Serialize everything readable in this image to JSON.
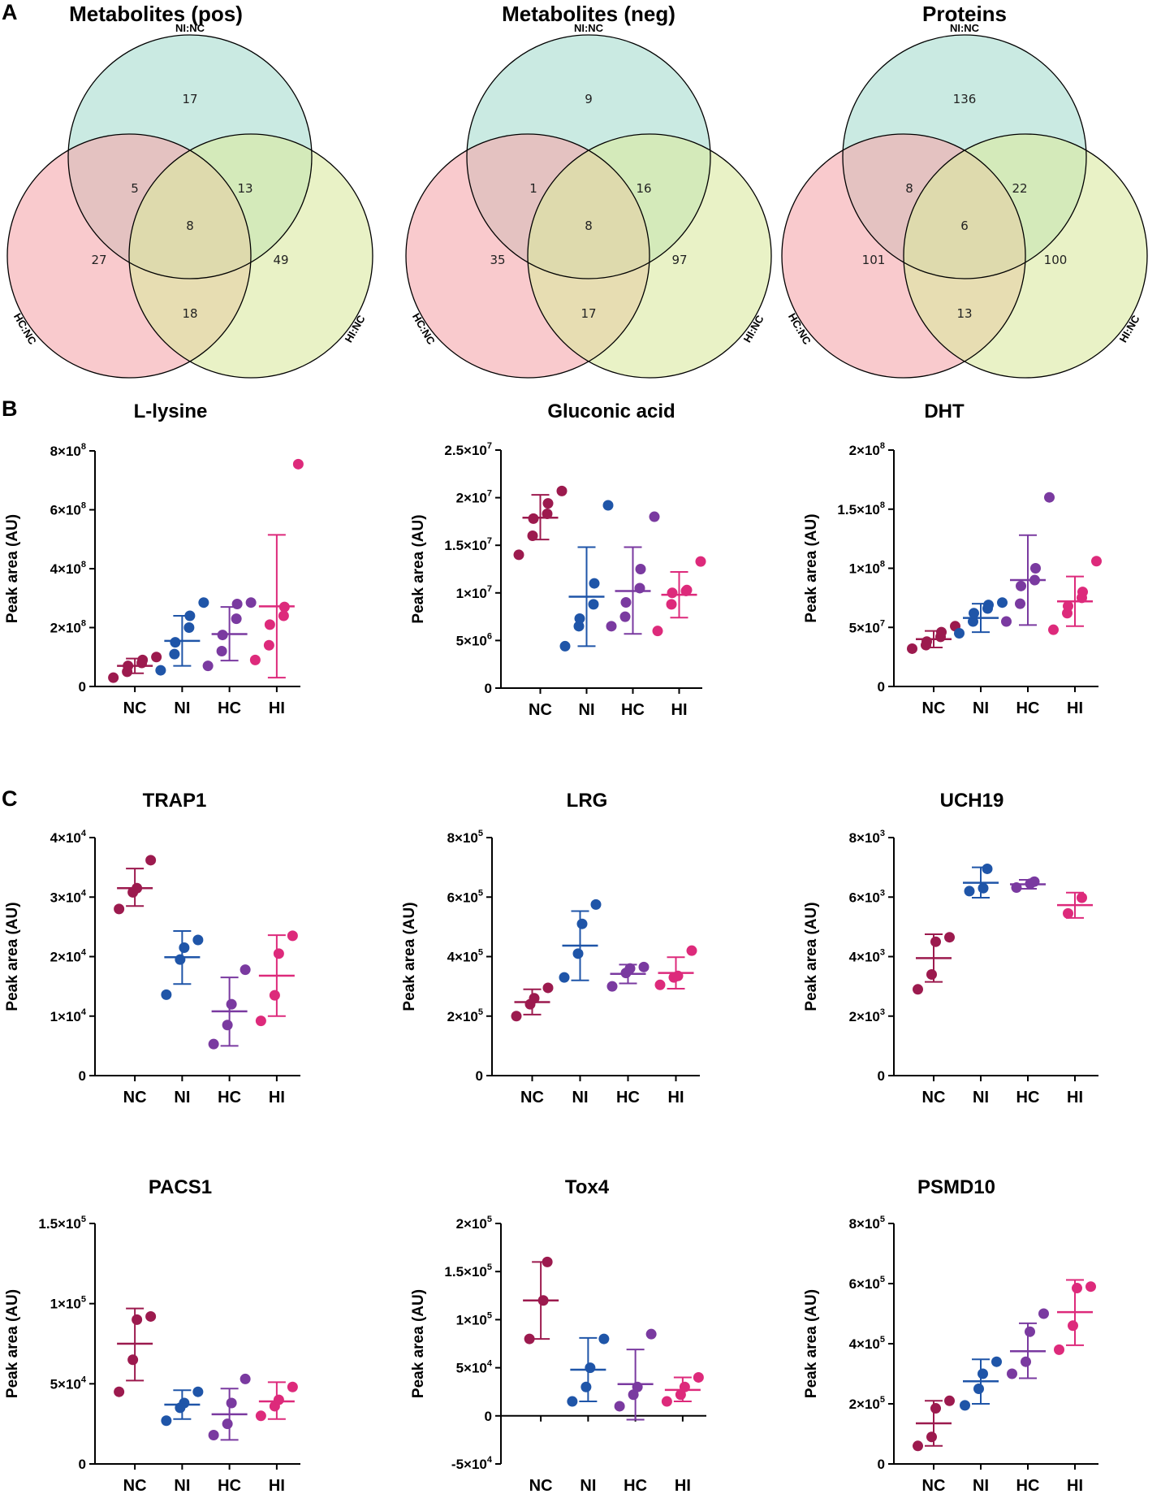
{
  "panel_labels": [
    "A",
    "B",
    "C"
  ],
  "venn": [
    {
      "title": "Metabolites (pos)",
      "labels": {
        "top": "NI:NC",
        "left": "HC:NC",
        "right": "HI:NC"
      },
      "counts": {
        "top": "17",
        "left": "27",
        "right": "49",
        "top_left": "5",
        "top_right": "13",
        "left_right": "18",
        "center": "8"
      }
    },
    {
      "title": "Metabolites (neg)",
      "labels": {
        "top": "NI:NC",
        "left": "HC:NC",
        "right": "HI:NC"
      },
      "counts": {
        "top": "9",
        "left": "35",
        "right": "97",
        "top_left": "1",
        "top_right": "16",
        "left_right": "17",
        "center": "8"
      }
    },
    {
      "title": "Proteins",
      "labels": {
        "top": "NI:NC",
        "left": "HC:NC",
        "right": "HI:NC"
      },
      "counts": {
        "top": "136",
        "left": "101",
        "right": "100",
        "top_left": "8",
        "top_right": "22",
        "left_right": "13",
        "center": "6"
      }
    }
  ],
  "colors": {
    "NC": "#9c1a4e",
    "NI": "#1f55a8",
    "HC": "#7a3aa0",
    "HI": "#dd2a7b",
    "venn_top": "#aaddd0",
    "venn_left": "#f5a7ab",
    "venn_right": "#dbe9a0"
  },
  "ylabel": "Peak area (AU)",
  "chart_data": [
    {
      "type": "scatter",
      "title": "L-lysine",
      "categories": [
        "NC",
        "NI",
        "HC",
        "HI"
      ],
      "ylim": [
        0,
        800000000
      ],
      "yticks": [
        {
          "v": 0,
          "m": "0",
          "e": ""
        },
        {
          "v": 200000000,
          "m": "2×10",
          "e": "8"
        },
        {
          "v": 400000000,
          "m": "4×10",
          "e": "8"
        },
        {
          "v": 600000000,
          "m": "6×10",
          "e": "8"
        },
        {
          "v": 800000000,
          "m": "8×10",
          "e": "8"
        }
      ],
      "series": [
        {
          "name": "NC",
          "points": [
            30000000,
            50000000,
            70000000,
            80000000,
            90000000,
            100000000
          ],
          "mean": 70000000,
          "sd_low": 45000000,
          "sd_high": 95000000
        },
        {
          "name": "NI",
          "points": [
            55000000,
            110000000,
            150000000,
            200000000,
            240000000,
            285000000
          ],
          "mean": 155000000,
          "sd_low": 70000000,
          "sd_high": 240000000
        },
        {
          "name": "HC",
          "points": [
            70000000,
            120000000,
            175000000,
            230000000,
            280000000,
            285000000
          ],
          "mean": 178000000,
          "sd_low": 88000000,
          "sd_high": 270000000
        },
        {
          "name": "HI",
          "points": [
            90000000,
            140000000,
            210000000,
            240000000,
            270000000,
            755000000
          ],
          "mean": 272000000,
          "sd_low": 30000000,
          "sd_high": 515000000
        }
      ]
    },
    {
      "type": "scatter",
      "title": "Gluconic acid",
      "categories": [
        "NC",
        "NI",
        "HC",
        "HI"
      ],
      "ylim": [
        0,
        25000000
      ],
      "yticks": [
        {
          "v": 0,
          "m": "0",
          "e": ""
        },
        {
          "v": 5000000,
          "m": "5×10",
          "e": "6"
        },
        {
          "v": 10000000,
          "m": "1×10",
          "e": "7"
        },
        {
          "v": 15000000,
          "m": "1.5×10",
          "e": "7"
        },
        {
          "v": 20000000,
          "m": "2×10",
          "e": "7"
        },
        {
          "v": 25000000,
          "m": "2.5×10",
          "e": "7"
        }
      ],
      "series": [
        {
          "name": "NC",
          "points": [
            14000000,
            16000000,
            17800000,
            18300000,
            19400000,
            20700000
          ],
          "mean": 17900000,
          "sd_low": 15600000,
          "sd_high": 20300000
        },
        {
          "name": "NI",
          "points": [
            4400000,
            6500000,
            7300000,
            8800000,
            11000000,
            19200000
          ],
          "mean": 9600000,
          "sd_low": 4400000,
          "sd_high": 14800000
        },
        {
          "name": "HC",
          "points": [
            6500000,
            7500000,
            9000000,
            10500000,
            12500000,
            18000000
          ],
          "mean": 10200000,
          "sd_low": 5700000,
          "sd_high": 14800000
        },
        {
          "name": "HI",
          "points": [
            6000000,
            8800000,
            10000000,
            10300000,
            10200000,
            13300000
          ],
          "mean": 9800000,
          "sd_low": 7400000,
          "sd_high": 12200000
        }
      ]
    },
    {
      "type": "scatter",
      "title": "DHT",
      "categories": [
        "NC",
        "NI",
        "HC",
        "HI"
      ],
      "ylim": [
        0,
        200000000
      ],
      "yticks": [
        {
          "v": 0,
          "m": "0",
          "e": ""
        },
        {
          "v": 50000000,
          "m": "5×10",
          "e": "7"
        },
        {
          "v": 100000000,
          "m": "1×10",
          "e": "8"
        },
        {
          "v": 150000000,
          "m": "1.5×10",
          "e": "8"
        },
        {
          "v": 200000000,
          "m": "2×10",
          "e": "8"
        }
      ],
      "series": [
        {
          "name": "NC",
          "points": [
            32000000,
            35000000,
            38000000,
            42000000,
            46000000,
            51000000
          ],
          "mean": 40000000,
          "sd_low": 33000000,
          "sd_high": 47000000
        },
        {
          "name": "NI",
          "points": [
            45000000,
            55000000,
            62000000,
            66000000,
            69000000,
            71000000
          ],
          "mean": 58000000,
          "sd_low": 46000000,
          "sd_high": 70000000
        },
        {
          "name": "HC",
          "points": [
            55000000,
            70000000,
            85000000,
            90000000,
            100000000,
            160000000
          ],
          "mean": 90000000,
          "sd_low": 52000000,
          "sd_high": 128000000
        },
        {
          "name": "HI",
          "points": [
            48000000,
            62000000,
            68000000,
            75000000,
            80000000,
            106000000
          ],
          "mean": 72000000,
          "sd_low": 51000000,
          "sd_high": 93000000
        }
      ]
    },
    {
      "type": "scatter",
      "title": "TRAP1",
      "categories": [
        "NC",
        "NI",
        "HC",
        "HI"
      ],
      "ylim": [
        0,
        40000
      ],
      "yticks": [
        {
          "v": 0,
          "m": "0",
          "e": ""
        },
        {
          "v": 10000,
          "m": "1×10",
          "e": "4"
        },
        {
          "v": 20000,
          "m": "2×10",
          "e": "4"
        },
        {
          "v": 30000,
          "m": "3×10",
          "e": "4"
        },
        {
          "v": 40000,
          "m": "4×10",
          "e": "4"
        }
      ],
      "series": [
        {
          "name": "NC",
          "points": [
            28000,
            30800,
            31500,
            36200
          ],
          "mean": 31500,
          "sd_low": 28500,
          "sd_high": 34800
        },
        {
          "name": "NI",
          "points": [
            13600,
            19500,
            21500,
            22800
          ],
          "mean": 19900,
          "sd_low": 15400,
          "sd_high": 24300
        },
        {
          "name": "HC",
          "points": [
            5300,
            8500,
            12000,
            17800
          ],
          "mean": 10800,
          "sd_low": 5000,
          "sd_high": 16500
        },
        {
          "name": "HI",
          "points": [
            9200,
            13500,
            20500,
            23500
          ],
          "mean": 16800,
          "sd_low": 10000,
          "sd_high": 23600
        }
      ]
    },
    {
      "type": "scatter",
      "title": "LRG",
      "categories": [
        "NC",
        "NI",
        "HC",
        "HI"
      ],
      "ylim": [
        0,
        800000
      ],
      "yticks": [
        {
          "v": 0,
          "m": "0",
          "e": ""
        },
        {
          "v": 200000,
          "m": "2×10",
          "e": "5"
        },
        {
          "v": 400000,
          "m": "4×10",
          "e": "5"
        },
        {
          "v": 600000,
          "m": "6×10",
          "e": "5"
        },
        {
          "v": 800000,
          "m": "8×10",
          "e": "5"
        }
      ],
      "series": [
        {
          "name": "NC",
          "points": [
            200000,
            240000,
            260000,
            295000
          ],
          "mean": 247000,
          "sd_low": 205000,
          "sd_high": 290000
        },
        {
          "name": "NI",
          "points": [
            330000,
            410000,
            510000,
            575000
          ],
          "mean": 437000,
          "sd_low": 320000,
          "sd_high": 553000
        },
        {
          "name": "HC",
          "points": [
            300000,
            345000,
            360000,
            365000
          ],
          "mean": 342000,
          "sd_low": 310000,
          "sd_high": 373000
        },
        {
          "name": "HI",
          "points": [
            305000,
            330000,
            335000,
            420000
          ],
          "mean": 345000,
          "sd_low": 292000,
          "sd_high": 398000
        }
      ]
    },
    {
      "type": "scatter",
      "title": "UCH19",
      "categories": [
        "NC",
        "NI",
        "HC",
        "HI"
      ],
      "ylim": [
        0,
        8000
      ],
      "yticks": [
        {
          "v": 0,
          "m": "0",
          "e": ""
        },
        {
          "v": 2000,
          "m": "2×10",
          "e": "3"
        },
        {
          "v": 4000,
          "m": "4×10",
          "e": "3"
        },
        {
          "v": 6000,
          "m": "6×10",
          "e": "3"
        },
        {
          "v": 8000,
          "m": "8×10",
          "e": "3"
        }
      ],
      "series": [
        {
          "name": "NC",
          "points": [
            2900,
            3400,
            4500,
            4650
          ],
          "mean": 3950,
          "sd_low": 3150,
          "sd_high": 4750
        },
        {
          "name": "NI",
          "points": [
            6200,
            6300,
            6950
          ],
          "mean": 6480,
          "sd_low": 5980,
          "sd_high": 7000
        },
        {
          "name": "HC",
          "points": [
            6320,
            6450,
            6520
          ],
          "mean": 6430,
          "sd_low": 6280,
          "sd_high": 6580
        },
        {
          "name": "HI",
          "points": [
            5450,
            5980
          ],
          "mean": 5730,
          "sd_low": 5300,
          "sd_high": 6150
        }
      ]
    },
    {
      "type": "scatter",
      "title": "PACS1",
      "categories": [
        "NC",
        "NI",
        "HC",
        "HI"
      ],
      "ylim": [
        0,
        150000
      ],
      "yticks": [
        {
          "v": 0,
          "m": "0",
          "e": ""
        },
        {
          "v": 50000,
          "m": "5×10",
          "e": "4"
        },
        {
          "v": 100000,
          "m": "1×10",
          "e": "5"
        },
        {
          "v": 150000,
          "m": "1.5×10",
          "e": "5"
        }
      ],
      "series": [
        {
          "name": "NC",
          "points": [
            45000,
            65000,
            90000,
            92000
          ],
          "mean": 75000,
          "sd_low": 52000,
          "sd_high": 97000
        },
        {
          "name": "NI",
          "points": [
            27000,
            35000,
            38000,
            45000
          ],
          "mean": 37000,
          "sd_low": 28000,
          "sd_high": 46000
        },
        {
          "name": "HC",
          "points": [
            18000,
            25000,
            38000,
            53000
          ],
          "mean": 31000,
          "sd_low": 15000,
          "sd_high": 47000
        },
        {
          "name": "HI",
          "points": [
            30000,
            36000,
            40000,
            48000
          ],
          "mean": 39000,
          "sd_low": 28000,
          "sd_high": 51000
        }
      ]
    },
    {
      "type": "scatter",
      "title": "Tox4",
      "categories": [
        "NC",
        "NI",
        "HC",
        "HI"
      ],
      "ylim": [
        -50000,
        200000
      ],
      "yticks": [
        {
          "v": -50000,
          "m": "-5×10",
          "e": "4"
        },
        {
          "v": 0,
          "m": "0",
          "e": ""
        },
        {
          "v": 50000,
          "m": "5×10",
          "e": "4"
        },
        {
          "v": 100000,
          "m": "1×10",
          "e": "5"
        },
        {
          "v": 150000,
          "m": "1.5×10",
          "e": "5"
        },
        {
          "v": 200000,
          "m": "2×10",
          "e": "5"
        }
      ],
      "series": [
        {
          "name": "NC",
          "points": [
            80000,
            120000,
            160000
          ],
          "mean": 120000,
          "sd_low": 80000,
          "sd_high": 160000
        },
        {
          "name": "NI",
          "points": [
            15000,
            30000,
            50000,
            80000
          ],
          "mean": 48000,
          "sd_low": 15000,
          "sd_high": 81000
        },
        {
          "name": "HC",
          "points": [
            10000,
            22000,
            30000,
            85000
          ],
          "mean": 33000,
          "sd_low": -4000,
          "sd_high": 69000
        },
        {
          "name": "HI",
          "points": [
            15000,
            22000,
            30000,
            40000
          ],
          "mean": 27000,
          "sd_low": 15000,
          "sd_high": 40000
        }
      ]
    },
    {
      "type": "scatter",
      "title": "PSMD10",
      "categories": [
        "NC",
        "NI",
        "HC",
        "HI"
      ],
      "ylim": [
        0,
        800000
      ],
      "yticks": [
        {
          "v": 0,
          "m": "0",
          "e": ""
        },
        {
          "v": 200000,
          "m": "2×10",
          "e": "5"
        },
        {
          "v": 400000,
          "m": "4×10",
          "e": "5"
        },
        {
          "v": 600000,
          "m": "6×10",
          "e": "5"
        },
        {
          "v": 800000,
          "m": "8×10",
          "e": "5"
        }
      ],
      "series": [
        {
          "name": "NC",
          "points": [
            60000,
            90000,
            185000,
            210000
          ],
          "mean": 135000,
          "sd_low": 60000,
          "sd_high": 210000
        },
        {
          "name": "NI",
          "points": [
            195000,
            250000,
            300000,
            340000
          ],
          "mean": 275000,
          "sd_low": 200000,
          "sd_high": 348000
        },
        {
          "name": "HC",
          "points": [
            300000,
            340000,
            440000,
            500000
          ],
          "mean": 375000,
          "sd_low": 285000,
          "sd_high": 468000
        },
        {
          "name": "HI",
          "points": [
            380000,
            460000,
            585000,
            590000
          ],
          "mean": 505000,
          "sd_low": 395000,
          "sd_high": 612000
        }
      ]
    }
  ]
}
